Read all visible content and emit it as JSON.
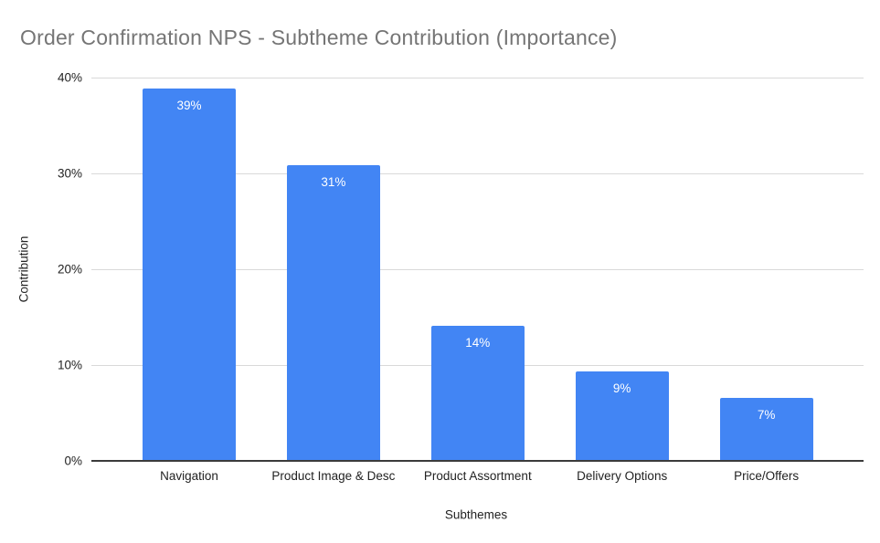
{
  "chart_data": {
    "type": "bar",
    "title": "Order Confirmation NPS - Subtheme Contribution (Importance)",
    "xlabel": "Subthemes",
    "ylabel": "Contribution",
    "categories": [
      "Navigation",
      "Product Image & Desc",
      "Product Assortment",
      "Delivery Options",
      "Price/Offers"
    ],
    "values": [
      39,
      31,
      14,
      9,
      7
    ],
    "data_labels": [
      "39%",
      "31%",
      "14%",
      "9%",
      "7%"
    ],
    "rendered_heights_pct": [
      38.9,
      30.9,
      14.1,
      9.3,
      6.6
    ],
    "y_ticks": [
      "0%",
      "10%",
      "20%",
      "30%",
      "40%"
    ],
    "y_tick_values": [
      0,
      10,
      20,
      30,
      40
    ],
    "ylim": [
      0,
      40
    ],
    "grid": true,
    "legend": "none",
    "colors": {
      "bar": "#4285F4",
      "bar_label": "#ffffff",
      "title": "#757575",
      "axis_text": "#222222",
      "gridline": "#d9d9d9",
      "axis_line": "#3b3b3b",
      "background": "#ffffff"
    }
  }
}
